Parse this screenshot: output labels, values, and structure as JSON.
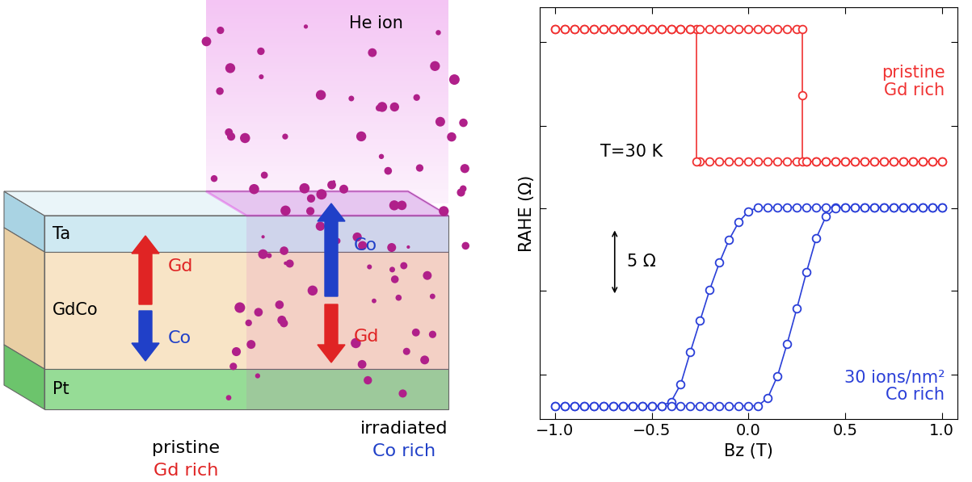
{
  "diagram": {
    "beam_label": "He ion",
    "layers": [
      "Ta",
      "GdCo",
      "Pt"
    ],
    "colors": {
      "Gd": "#e02424",
      "Co": "#2040c8"
    },
    "regions": [
      {
        "name": "pristine",
        "composition": "Gd rich",
        "up": "Gd",
        "down": "Co"
      },
      {
        "name": "irradiated",
        "composition": "Co rich",
        "up": "Co",
        "down": "Gd"
      }
    ]
  },
  "chart_data": {
    "type": "line",
    "x_label": "Bz (T)",
    "y_label": "RAHE (Ω)",
    "xlim": [
      -1.08,
      1.08
    ],
    "ylim": [
      0,
      30.5
    ],
    "xticks": [
      {
        "value": -1.0,
        "label": "−1.0"
      },
      {
        "value": -0.5,
        "label": "−0.5"
      },
      {
        "value": 0.0,
        "label": "0.0"
      },
      {
        "value": 0.5,
        "label": "0.5"
      },
      {
        "value": 1.0,
        "label": "1.0"
      }
    ],
    "yticks": [
      3.3,
      9.5,
      15.6,
      21.7,
      27.9
    ],
    "tick_labels": "x",
    "annotations": [
      {
        "text": "T=30 K"
      }
    ],
    "scale_bar": {
      "value": 5,
      "label": "5 Ω"
    },
    "series": [
      {
        "name": "pristine\nGd rich",
        "color": "#f03232",
        "marker": "o",
        "line_style": "solid",
        "x": [
          1.0,
          0.95,
          0.9,
          0.85,
          0.8,
          0.75,
          0.7,
          0.65,
          0.6,
          0.55,
          0.5,
          0.45,
          0.4,
          0.35,
          0.3,
          0.25,
          0.2,
          0.15,
          0.1,
          0.05,
          0.0,
          -0.05,
          -0.1,
          -0.15,
          -0.2,
          -0.25,
          -0.27,
          -0.27,
          -0.3,
          -0.35,
          -0.4,
          -0.45,
          -0.5,
          -0.55,
          -0.6,
          -0.65,
          -0.7,
          -0.75,
          -0.8,
          -0.85,
          -0.9,
          -0.95,
          -1.0,
          -1.0,
          -0.95,
          -0.9,
          -0.85,
          -0.8,
          -0.75,
          -0.7,
          -0.65,
          -0.6,
          -0.55,
          -0.5,
          -0.45,
          -0.4,
          -0.35,
          -0.3,
          -0.25,
          -0.2,
          -0.15,
          -0.1,
          -0.05,
          0.0,
          0.05,
          0.1,
          0.15,
          0.2,
          0.25,
          0.28,
          0.28,
          0.28,
          0.3,
          0.35,
          0.4,
          0.45,
          0.5,
          0.55,
          0.6,
          0.65,
          0.7,
          0.75,
          0.8,
          0.85,
          0.9,
          0.95,
          1.0
        ],
        "values": [
          19.1,
          19.1,
          19.1,
          19.1,
          19.1,
          19.1,
          19.1,
          19.1,
          19.1,
          19.1,
          19.1,
          19.1,
          19.1,
          19.1,
          19.1,
          19.1,
          19.1,
          19.1,
          19.1,
          19.1,
          19.1,
          19.1,
          19.1,
          19.1,
          19.1,
          19.1,
          19.1,
          28.9,
          28.9,
          28.9,
          28.9,
          28.9,
          28.9,
          28.9,
          28.9,
          28.9,
          28.9,
          28.9,
          28.9,
          28.9,
          28.9,
          28.9,
          28.9,
          28.9,
          28.9,
          28.9,
          28.9,
          28.9,
          28.9,
          28.9,
          28.9,
          28.9,
          28.9,
          28.9,
          28.9,
          28.9,
          28.9,
          28.9,
          28.9,
          28.9,
          28.9,
          28.9,
          28.9,
          28.9,
          28.9,
          28.9,
          28.9,
          28.9,
          28.9,
          28.9,
          24.0,
          19.1,
          19.1,
          19.1,
          19.1,
          19.1,
          19.1,
          19.1,
          19.1,
          19.1,
          19.1,
          19.1,
          19.1,
          19.1,
          19.1,
          19.1,
          19.1
        ]
      },
      {
        "name": "30 ions/nm²\nCo rich",
        "color": "#2a3fd8",
        "marker": "o",
        "line_style": "solid",
        "x": [
          1.0,
          0.95,
          0.9,
          0.85,
          0.8,
          0.75,
          0.7,
          0.65,
          0.6,
          0.55,
          0.5,
          0.45,
          0.4,
          0.35,
          0.3,
          0.25,
          0.2,
          0.15,
          0.1,
          0.05,
          0.0,
          -0.05,
          -0.1,
          -0.15,
          -0.2,
          -0.25,
          -0.3,
          -0.35,
          -0.4,
          -0.45,
          -0.5,
          -0.55,
          -0.6,
          -0.65,
          -0.7,
          -0.75,
          -0.8,
          -0.85,
          -0.9,
          -0.95,
          -1.0,
          -1.0,
          -0.95,
          -0.9,
          -0.85,
          -0.8,
          -0.75,
          -0.7,
          -0.65,
          -0.6,
          -0.55,
          -0.5,
          -0.45,
          -0.4,
          -0.35,
          -0.3,
          -0.25,
          -0.2,
          -0.15,
          -0.1,
          -0.05,
          0.0,
          0.05,
          0.1,
          0.15,
          0.2,
          0.25,
          0.3,
          0.35,
          0.4,
          0.45,
          0.5,
          0.55,
          0.6,
          0.65,
          0.7,
          0.75,
          0.8,
          0.85,
          0.9,
          0.95,
          1.0
        ],
        "values": [
          15.7,
          15.7,
          15.7,
          15.7,
          15.7,
          15.7,
          15.7,
          15.7,
          15.7,
          15.7,
          15.7,
          15.7,
          15.7,
          15.7,
          15.7,
          15.7,
          15.7,
          15.7,
          15.7,
          15.7,
          15.4,
          14.6,
          13.3,
          11.6,
          9.6,
          7.3,
          5.0,
          2.6,
          1.3,
          1.0,
          1.0,
          1.0,
          1.0,
          1.0,
          1.0,
          1.0,
          1.0,
          1.0,
          1.0,
          1.0,
          1.0,
          1.0,
          1.0,
          1.0,
          1.0,
          1.0,
          1.0,
          1.0,
          1.0,
          1.0,
          1.0,
          1.0,
          1.0,
          1.0,
          1.0,
          1.0,
          1.0,
          1.0,
          1.0,
          1.0,
          1.0,
          1.0,
          1.0,
          1.6,
          3.2,
          5.6,
          8.2,
          10.9,
          13.4,
          15.0,
          15.6,
          15.7,
          15.7,
          15.7,
          15.7,
          15.7,
          15.7,
          15.7,
          15.7,
          15.7,
          15.7,
          15.7
        ]
      }
    ]
  }
}
